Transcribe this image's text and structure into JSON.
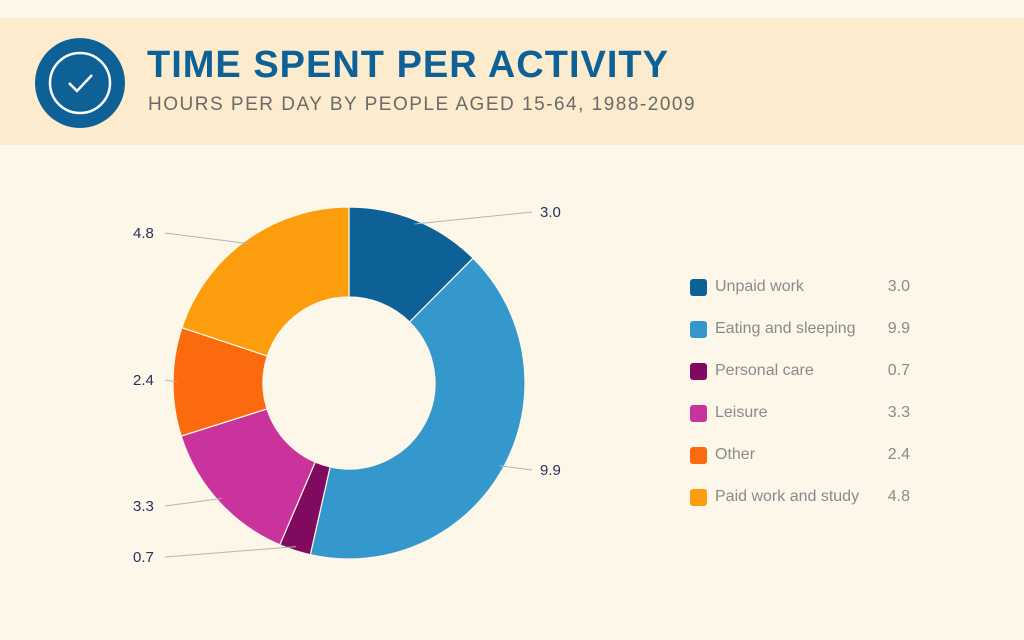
{
  "header": {
    "title": "TIME SPENT PER ACTIVITY",
    "subtitle": "HOURS PER DAY BY PEOPLE AGED 15-64, 1988-2009",
    "icon": "check-circle-icon"
  },
  "chart_data": {
    "type": "pie",
    "donut": true,
    "title": "TIME SPENT PER ACTIVITY",
    "subtitle": "HOURS PER DAY BY PEOPLE AGED 15-64, 1988-2009",
    "legend_position": "right",
    "categories": [
      "Unpaid work",
      "Eating and sleeping",
      "Personal care",
      "Leisure",
      "Other",
      "Paid work and study"
    ],
    "values": [
      3.0,
      9.9,
      0.7,
      3.3,
      2.4,
      4.8
    ],
    "labels": [
      "3.0",
      "9.9",
      "0.7",
      "3.3",
      "2.4",
      "4.8"
    ],
    "colors": [
      "#0e6196",
      "#3598cd",
      "#7f0a5f",
      "#c9339b",
      "#fb6a0c",
      "#fb9d0d"
    ]
  }
}
